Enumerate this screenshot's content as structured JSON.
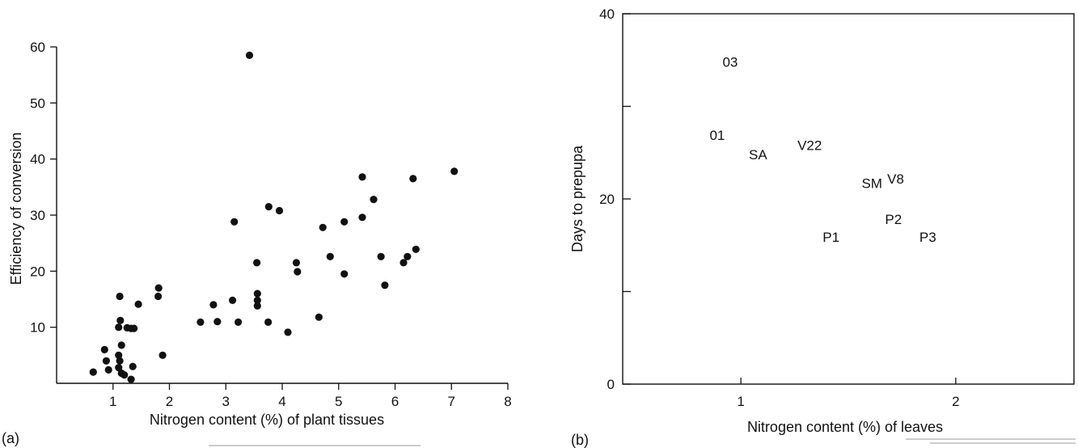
{
  "chart_data": [
    {
      "type": "scatter",
      "panel_label": "(a)",
      "xlabel": "Nitrogen content (%) of plant tissues",
      "ylabel": "Efficiency of conversion",
      "xlim": [
        0,
        8
      ],
      "ylim": [
        0,
        60
      ],
      "x_ticks": [
        1,
        2,
        3,
        4,
        5,
        6,
        7,
        8
      ],
      "x_tick_labels": [
        "1",
        "2",
        "3",
        "4",
        "5",
        "6",
        "7",
        "8"
      ],
      "y_ticks": [
        10,
        20,
        30,
        40,
        50,
        60
      ],
      "y_tick_labels": [
        "10",
        "20",
        "30",
        "40",
        "50",
        "60"
      ],
      "grid": false,
      "points": [
        {
          "x": 0.65,
          "y": 2.0
        },
        {
          "x": 0.85,
          "y": 6.0
        },
        {
          "x": 0.88,
          "y": 4.0
        },
        {
          "x": 0.92,
          "y": 2.4
        },
        {
          "x": 1.1,
          "y": 10.0
        },
        {
          "x": 1.12,
          "y": 15.5
        },
        {
          "x": 1.13,
          "y": 11.2
        },
        {
          "x": 1.1,
          "y": 5.0
        },
        {
          "x": 1.12,
          "y": 4.0
        },
        {
          "x": 1.15,
          "y": 6.8
        },
        {
          "x": 1.1,
          "y": 2.8
        },
        {
          "x": 1.15,
          "y": 1.8
        },
        {
          "x": 1.2,
          "y": 1.5
        },
        {
          "x": 1.25,
          "y": 9.9
        },
        {
          "x": 1.32,
          "y": 9.8
        },
        {
          "x": 1.37,
          "y": 9.8
        },
        {
          "x": 1.35,
          "y": 3.0
        },
        {
          "x": 1.32,
          "y": 0.7
        },
        {
          "x": 1.45,
          "y": 14.1
        },
        {
          "x": 1.8,
          "y": 15.5
        },
        {
          "x": 1.81,
          "y": 17.0
        },
        {
          "x": 1.88,
          "y": 5.0
        },
        {
          "x": 2.55,
          "y": 10.9
        },
        {
          "x": 2.78,
          "y": 14.0
        },
        {
          "x": 2.85,
          "y": 11.0
        },
        {
          "x": 3.12,
          "y": 14.8
        },
        {
          "x": 3.15,
          "y": 28.8
        },
        {
          "x": 3.22,
          "y": 10.9
        },
        {
          "x": 3.42,
          "y": 58.5
        },
        {
          "x": 3.55,
          "y": 21.5
        },
        {
          "x": 3.56,
          "y": 16.0
        },
        {
          "x": 3.56,
          "y": 14.8
        },
        {
          "x": 3.56,
          "y": 13.8
        },
        {
          "x": 3.75,
          "y": 10.9
        },
        {
          "x": 3.76,
          "y": 31.5
        },
        {
          "x": 3.95,
          "y": 30.8
        },
        {
          "x": 4.1,
          "y": 9.1
        },
        {
          "x": 4.25,
          "y": 21.5
        },
        {
          "x": 4.27,
          "y": 19.9
        },
        {
          "x": 4.65,
          "y": 11.8
        },
        {
          "x": 4.72,
          "y": 27.8
        },
        {
          "x": 4.85,
          "y": 22.6
        },
        {
          "x": 5.1,
          "y": 28.8
        },
        {
          "x": 5.1,
          "y": 19.5
        },
        {
          "x": 5.42,
          "y": 36.8
        },
        {
          "x": 5.42,
          "y": 29.6
        },
        {
          "x": 5.62,
          "y": 32.8
        },
        {
          "x": 5.75,
          "y": 22.6
        },
        {
          "x": 5.82,
          "y": 17.5
        },
        {
          "x": 6.15,
          "y": 21.5
        },
        {
          "x": 6.22,
          "y": 22.6
        },
        {
          "x": 6.32,
          "y": 36.5
        },
        {
          "x": 6.37,
          "y": 23.9
        },
        {
          "x": 7.05,
          "y": 37.8
        }
      ]
    },
    {
      "type": "scatter",
      "panel_label": "(b)",
      "xlabel": "Nitrogen content (%) of leaves",
      "ylabel": "Days to prepupa",
      "xlim": [
        0.45,
        2.55
      ],
      "ylim": [
        0,
        40
      ],
      "x_ticks": [
        1,
        2
      ],
      "x_tick_labels": [
        "1",
        "2"
      ],
      "y_ticks": [
        0,
        10,
        20,
        30,
        40
      ],
      "y_tick_labels": [
        "0",
        "",
        "20",
        "",
        "40"
      ],
      "grid": false,
      "points": [
        {
          "label": "03",
          "x": 0.95,
          "y": 34.8
        },
        {
          "label": "01",
          "x": 0.89,
          "y": 26.9
        },
        {
          "label": "SA",
          "x": 1.08,
          "y": 24.8
        },
        {
          "label": "V22",
          "x": 1.32,
          "y": 25.8
        },
        {
          "label": "SM",
          "x": 1.61,
          "y": 21.7
        },
        {
          "label": "V8",
          "x": 1.72,
          "y": 22.2
        },
        {
          "label": "P1",
          "x": 1.42,
          "y": 15.9
        },
        {
          "label": "P2",
          "x": 1.71,
          "y": 17.8
        },
        {
          "label": "P3",
          "x": 1.87,
          "y": 15.9
        }
      ]
    }
  ]
}
